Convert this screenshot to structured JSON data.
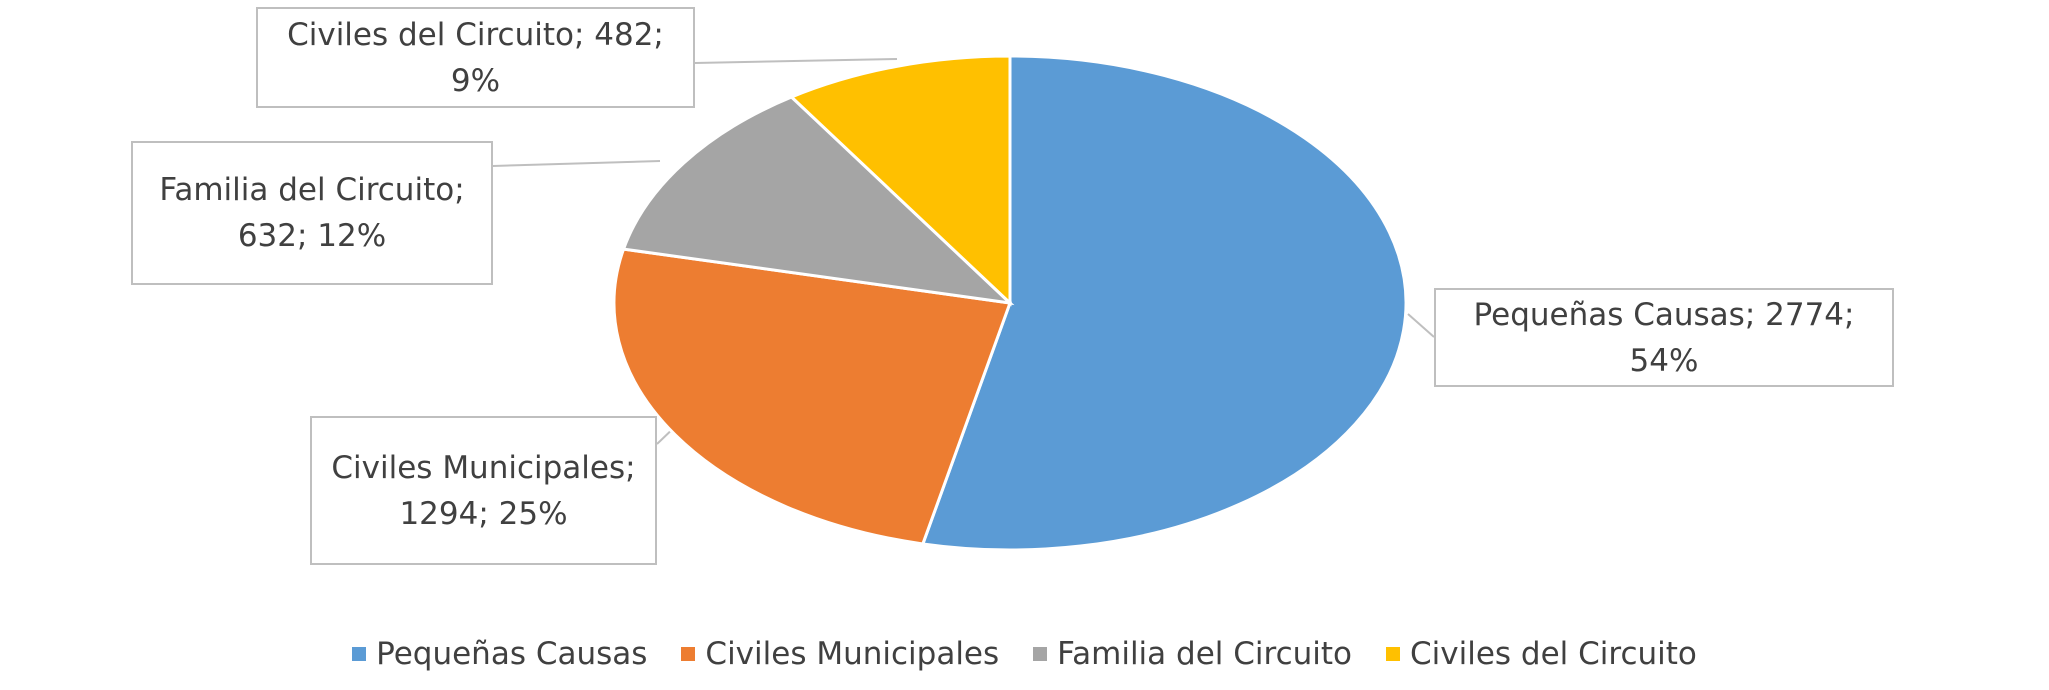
{
  "chart_data": {
    "type": "pie",
    "categories": [
      "Pequeñas Causas",
      "Civiles Municipales",
      "Familia del Circuito",
      "Civiles del Circuito"
    ],
    "values": [
      2774,
      1294,
      632,
      482
    ],
    "value_labels": [
      "Pequeñas Causas; 2774; 54%",
      "Civiles Municipales; 1294; 25%",
      "Familia del Circuito; 632; 12%",
      "Civiles del Circuito; 482; 9%"
    ],
    "colors": [
      "#5b9bd5",
      "#ed7d31",
      "#a5a5a5",
      "#ffc000"
    ],
    "legend": "bottom"
  }
}
